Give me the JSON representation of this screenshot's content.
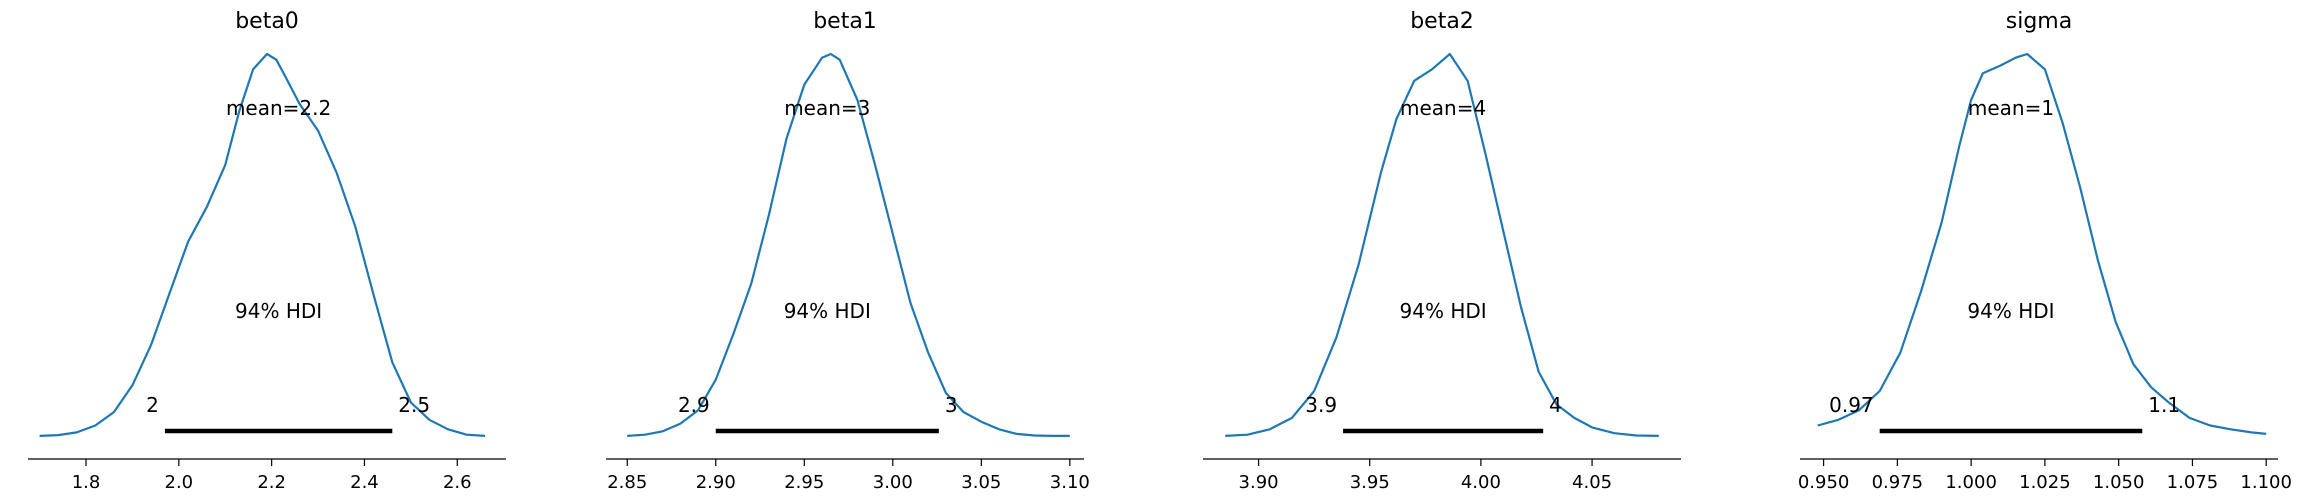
{
  "colors": {
    "kde": "#1f77b4",
    "hdi": "#000000",
    "axis": "#000000"
  },
  "chart_data": [
    {
      "type": "line",
      "title": "beta0",
      "mean_label": "mean=2.2",
      "hdi_label": "94% HDI",
      "hdi": [
        1.97,
        2.46
      ],
      "hdi_low_label": "2",
      "hdi_high_label": "2.5",
      "xlim": [
        1.675,
        2.705
      ],
      "xticks": [
        1.8,
        2.0,
        2.2,
        2.4,
        2.6
      ],
      "xtick_labels": [
        "1.8",
        "2.0",
        "2.2",
        "2.4",
        "2.6"
      ],
      "ymax": 1.0,
      "x": [
        1.7,
        1.74,
        1.78,
        1.82,
        1.86,
        1.9,
        1.94,
        1.98,
        2.02,
        2.06,
        2.1,
        2.13,
        2.16,
        2.19,
        2.21,
        2.23,
        2.26,
        2.3,
        2.34,
        2.38,
        2.42,
        2.46,
        2.5,
        2.54,
        2.58,
        2.62,
        2.66
      ],
      "density": [
        0.003,
        0.005,
        0.012,
        0.03,
        0.065,
        0.135,
        0.24,
        0.375,
        0.51,
        0.6,
        0.71,
        0.85,
        0.96,
        1.0,
        0.985,
        0.94,
        0.87,
        0.8,
        0.69,
        0.55,
        0.37,
        0.195,
        0.09,
        0.045,
        0.02,
        0.006,
        0.003
      ]
    },
    {
      "type": "line",
      "title": "beta1",
      "mean_label": "mean=3",
      "hdi_label": "94% HDI",
      "hdi": [
        2.9,
        3.026
      ],
      "hdi_low_label": "2.9",
      "hdi_high_label": "3",
      "xlim": [
        2.838,
        3.108
      ],
      "xticks": [
        2.85,
        2.9,
        2.95,
        3.0,
        3.05,
        3.1
      ],
      "xtick_labels": [
        "2.85",
        "2.90",
        "2.95",
        "3.00",
        "3.05",
        "3.10"
      ],
      "ymax": 1.0,
      "x": [
        2.85,
        2.86,
        2.87,
        2.88,
        2.89,
        2.9,
        2.91,
        2.92,
        2.93,
        2.94,
        2.95,
        2.96,
        2.965,
        2.97,
        2.98,
        2.99,
        3.0,
        3.01,
        3.02,
        3.03,
        3.04,
        3.05,
        3.06,
        3.07,
        3.08,
        3.09,
        3.1
      ],
      "density": [
        0.003,
        0.006,
        0.015,
        0.035,
        0.07,
        0.15,
        0.27,
        0.4,
        0.58,
        0.78,
        0.92,
        0.99,
        1.0,
        0.985,
        0.88,
        0.71,
        0.53,
        0.35,
        0.22,
        0.115,
        0.065,
        0.04,
        0.02,
        0.008,
        0.004,
        0.003,
        0.003
      ]
    },
    {
      "type": "line",
      "title": "beta2",
      "mean_label": "mean=4",
      "hdi_label": "94% HDI",
      "hdi": [
        3.938,
        4.028
      ],
      "hdi_low_label": "3.9",
      "hdi_high_label": "4",
      "xlim": [
        3.875,
        4.09
      ],
      "xticks": [
        3.9,
        3.95,
        4.0,
        4.05
      ],
      "xtick_labels": [
        "3.90",
        "3.95",
        "4.00",
        "4.05"
      ],
      "ymax": 1.0,
      "x": [
        3.885,
        3.895,
        3.905,
        3.915,
        3.925,
        3.935,
        3.945,
        3.955,
        3.962,
        3.97,
        3.978,
        3.986,
        3.994,
        4.002,
        4.01,
        4.018,
        4.026,
        4.034,
        4.042,
        4.05,
        4.06,
        4.07,
        4.08
      ],
      "density": [
        0.003,
        0.006,
        0.02,
        0.05,
        0.12,
        0.26,
        0.45,
        0.69,
        0.83,
        0.93,
        0.96,
        1.0,
        0.93,
        0.74,
        0.54,
        0.34,
        0.17,
        0.085,
        0.05,
        0.025,
        0.01,
        0.004,
        0.003
      ]
    },
    {
      "type": "line",
      "title": "sigma",
      "mean_label": "mean=1",
      "hdi_label": "94% HDI",
      "hdi": [
        0.969,
        1.058
      ],
      "hdi_low_label": "0.97",
      "hdi_high_label": "1.1",
      "xlim": [
        0.942,
        1.104
      ],
      "xticks": [
        0.95,
        0.975,
        1.0,
        1.025,
        1.05,
        1.075,
        1.1
      ],
      "xtick_labels": [
        "0.950",
        "0.975",
        "1.000",
        "1.025",
        "1.050",
        "1.075",
        "1.100"
      ],
      "ymax": 1.0,
      "x": [
        0.948,
        0.955,
        0.962,
        0.969,
        0.976,
        0.983,
        0.99,
        0.996,
        1.0,
        1.004,
        1.01,
        1.015,
        1.019,
        1.025,
        1.031,
        1.037,
        1.043,
        1.049,
        1.055,
        1.061,
        1.067,
        1.074,
        1.081,
        1.088,
        1.095,
        1.1
      ],
      "density": [
        0.03,
        0.045,
        0.07,
        0.12,
        0.22,
        0.38,
        0.56,
        0.76,
        0.88,
        0.95,
        0.97,
        0.99,
        1.0,
        0.96,
        0.82,
        0.65,
        0.46,
        0.3,
        0.19,
        0.13,
        0.09,
        0.05,
        0.03,
        0.02,
        0.012,
        0.008
      ]
    }
  ]
}
